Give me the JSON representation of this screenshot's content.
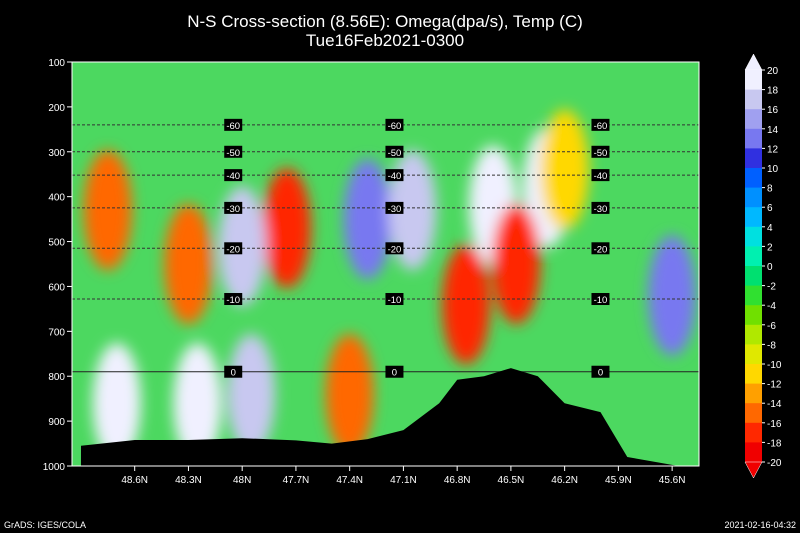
{
  "chart_data": {
    "type": "heatmap",
    "title": "N-S Cross-section (8.56E): Omega(dpa/s), Temp (C)",
    "subtitle": "Tue16Feb2021-0300",
    "x_ticks": [
      "48.6N",
      "48.3N",
      "48N",
      "47.7N",
      "47.4N",
      "47.1N",
      "46.8N",
      "46.5N",
      "46.2N",
      "45.9N",
      "45.6N"
    ],
    "y_ticks": [
      100,
      200,
      300,
      400,
      500,
      600,
      700,
      800,
      900,
      1000
    ],
    "ylim": [
      100,
      1000
    ],
    "colorbar_ticks": [
      20,
      18,
      16,
      14,
      12,
      10,
      8,
      6,
      4,
      2,
      0,
      -2,
      -4,
      -6,
      -8,
      -10,
      -12,
      -14,
      -16,
      -18,
      -20
    ],
    "colorbar_colors": [
      "#f0f0ff",
      "#c8c8f0",
      "#a0a0f0",
      "#7878f0",
      "#3030e0",
      "#0060ff",
      "#0090ff",
      "#00b8ff",
      "#00e0e0",
      "#00f0b0",
      "#00e070",
      "#30e030",
      "#70e000",
      "#b0e800",
      "#e0e800",
      "#ffd800",
      "#ffa000",
      "#ff6800",
      "#ff2800",
      "#f00000"
    ],
    "temperature_isotherms": [
      {
        "value": -60,
        "pressure": 240,
        "labels": [
          "-60",
          "-60",
          "-60"
        ]
      },
      {
        "value": -50,
        "pressure": 300,
        "labels": [
          "-50",
          "-50",
          "-50"
        ]
      },
      {
        "value": -40,
        "pressure": 352,
        "labels": [
          "-40",
          "-40",
          "-40"
        ]
      },
      {
        "value": -30,
        "pressure": 425,
        "labels": [
          "-30",
          "-30",
          "-30"
        ]
      },
      {
        "value": -20,
        "pressure": 515,
        "labels": [
          "-20",
          "-20",
          "-20"
        ]
      },
      {
        "value": -10,
        "pressure": 628,
        "labels": [
          "-10",
          "-10",
          "-10"
        ]
      },
      {
        "value": 0,
        "pressure": 790,
        "labels": [
          "0",
          "0",
          "0"
        ]
      }
    ],
    "omega_regions": [
      {
        "lat": 48.75,
        "pressure": 430,
        "omega": -16
      },
      {
        "lat": 48.3,
        "pressure": 550,
        "omega": -16
      },
      {
        "lat": 47.75,
        "pressure": 470,
        "omega": -18
      },
      {
        "lat": 48.0,
        "pressure": 510,
        "omega": 16
      },
      {
        "lat": 47.95,
        "pressure": 840,
        "omega": 16
      },
      {
        "lat": 48.25,
        "pressure": 860,
        "omega": 20
      },
      {
        "lat": 48.7,
        "pressure": 860,
        "omega": 18
      },
      {
        "lat": 47.4,
        "pressure": 840,
        "omega": -16
      },
      {
        "lat": 47.3,
        "pressure": 450,
        "omega": 12
      },
      {
        "lat": 47.05,
        "pressure": 430,
        "omega": 16
      },
      {
        "lat": 46.75,
        "pressure": 640,
        "omega": -18
      },
      {
        "lat": 46.6,
        "pressure": 420,
        "omega": 20
      },
      {
        "lat": 46.3,
        "pressure": 380,
        "omega": 20
      },
      {
        "lat": 46.47,
        "pressure": 550,
        "omega": -18
      },
      {
        "lat": 46.2,
        "pressure": 340,
        "omega": -12
      },
      {
        "lat": 45.6,
        "pressure": 620,
        "omega": 12
      }
    ],
    "terrain_top_pressure": [
      [
        48.9,
        955
      ],
      [
        48.6,
        942
      ],
      [
        48.3,
        942
      ],
      [
        48.0,
        938
      ],
      [
        47.7,
        943
      ],
      [
        47.5,
        950
      ],
      [
        47.3,
        940
      ],
      [
        47.1,
        920
      ],
      [
        46.9,
        860
      ],
      [
        46.8,
        808
      ],
      [
        46.65,
        800
      ],
      [
        46.5,
        782
      ],
      [
        46.35,
        800
      ],
      [
        46.2,
        860
      ],
      [
        46.0,
        880
      ],
      [
        45.85,
        980
      ],
      [
        45.45,
        1008
      ]
    ]
  },
  "footer": {
    "left": "GrADS: IGES/COLA",
    "right": "2021-02-16-04:32"
  }
}
